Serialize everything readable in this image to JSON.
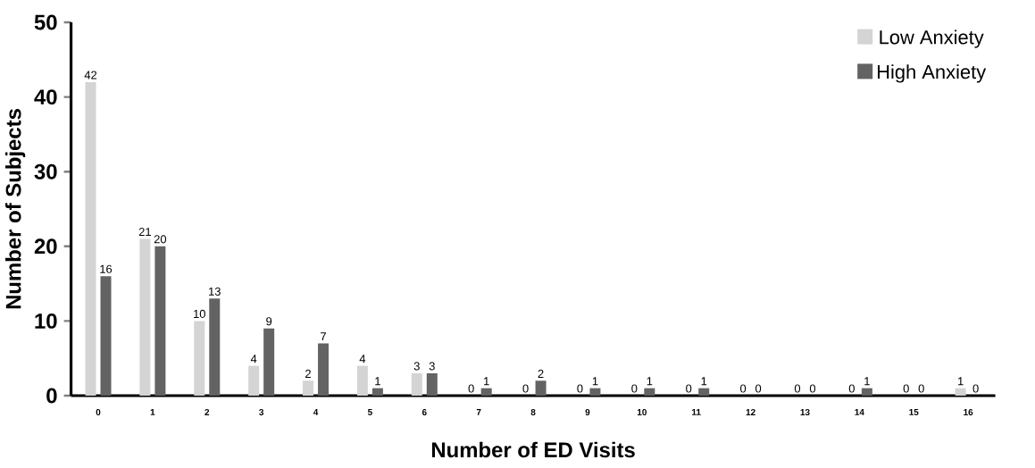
{
  "chart_data": {
    "type": "bar",
    "xlabel": "Number of ED Visits",
    "ylabel": "Number of Subjects",
    "categories": [
      "0",
      "1",
      "2",
      "3",
      "4",
      "5",
      "6",
      "7",
      "8",
      "9",
      "10",
      "11",
      "12",
      "13",
      "14",
      "15",
      "16"
    ],
    "series": [
      {
        "name": "Low Anxiety",
        "color": "#d4d4d4",
        "values": [
          42,
          21,
          10,
          4,
          2,
          4,
          3,
          0,
          0,
          0,
          0,
          0,
          0,
          0,
          0,
          0,
          1
        ]
      },
      {
        "name": "High Anxiety",
        "color": "#636363",
        "values": [
          16,
          20,
          13,
          9,
          7,
          1,
          3,
          1,
          2,
          1,
          1,
          1,
          0,
          0,
          1,
          0,
          0
        ]
      }
    ],
    "ylim": [
      0,
      50
    ],
    "yticks": [
      0,
      10,
      20,
      30,
      40,
      50
    ],
    "data_labels": true,
    "grid": false,
    "legend": "top right"
  }
}
